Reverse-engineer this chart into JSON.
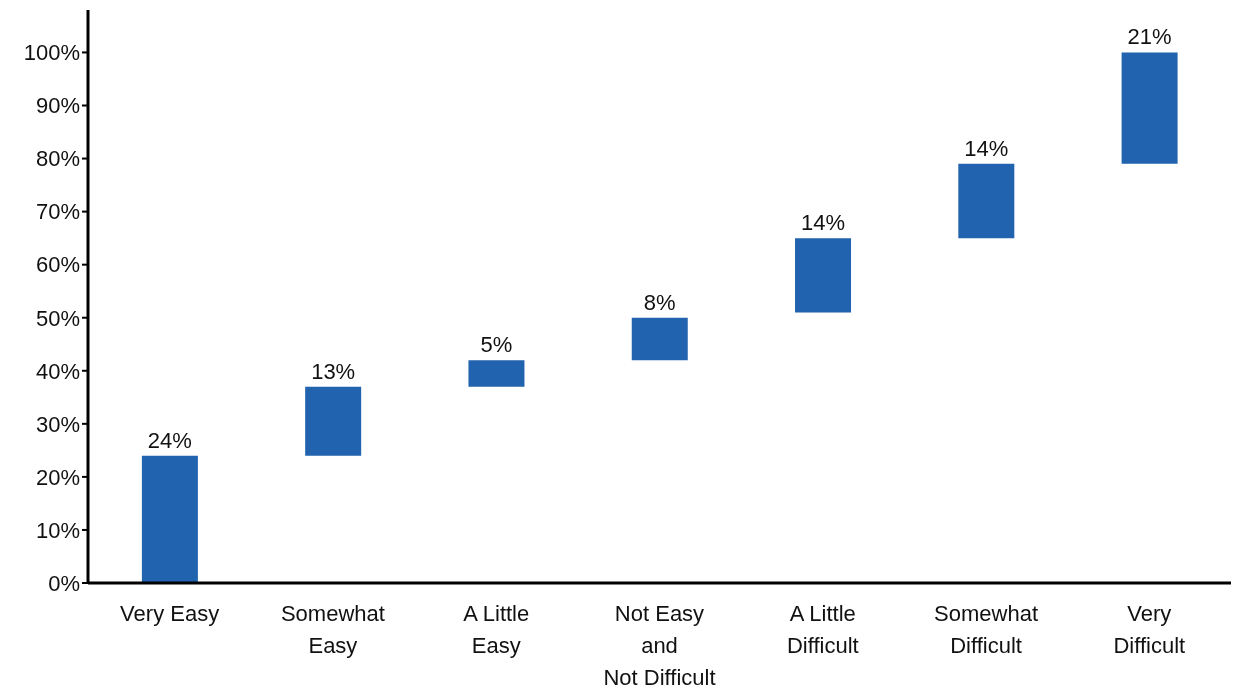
{
  "chart_data": {
    "type": "bar",
    "categories": [
      "Very Easy",
      "Somewhat\nEasy",
      "A Little\nEasy",
      "Not Easy\nand\nNot Difficult",
      "A Little\nDifficult",
      "Somewhat\nDifficult",
      "Very\nDifficult"
    ],
    "values": [
      24,
      13,
      5,
      8,
      14,
      14,
      21
    ],
    "base": [
      0,
      24,
      37,
      42,
      51,
      65,
      79
    ],
    "value_labels": [
      "24%",
      "13%",
      "5%",
      "8%",
      "14%",
      "14%",
      "21%"
    ],
    "color": "#2163ae",
    "ylim": [
      0,
      108
    ],
    "yticks": [
      {
        "value": 0,
        "label": "0%"
      },
      {
        "value": 10,
        "label": "10%"
      },
      {
        "value": 20,
        "label": "20%"
      },
      {
        "value": 30,
        "label": "30%"
      },
      {
        "value": 40,
        "label": "40%"
      },
      {
        "value": 50,
        "label": "50%"
      },
      {
        "value": 60,
        "label": "60%"
      },
      {
        "value": 70,
        "label": "70%"
      },
      {
        "value": 80,
        "label": "80%"
      },
      {
        "value": 90,
        "label": "90%"
      },
      {
        "value": 100,
        "label": "100%"
      }
    ],
    "grid": false,
    "legend": false
  }
}
